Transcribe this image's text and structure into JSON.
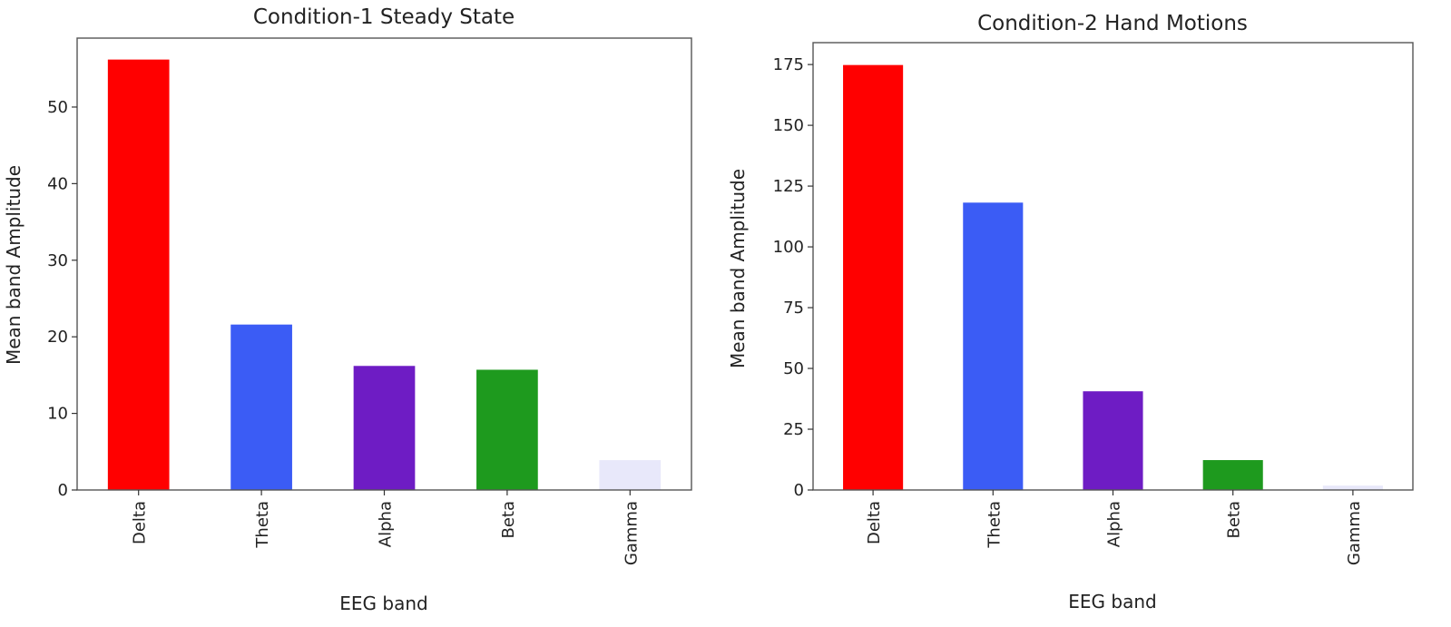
{
  "chart_data": [
    {
      "type": "bar",
      "title": "Condition-1 Steady State",
      "xlabel": "EEG band",
      "ylabel": "Mean band Amplitude",
      "categories": [
        "Delta",
        "Theta",
        "Alpha",
        "Beta",
        "Gamma"
      ],
      "values": [
        56.2,
        21.6,
        16.2,
        15.7,
        3.9
      ],
      "colors": [
        "#ff0000",
        "#3b5cf5",
        "#6e1cc4",
        "#1e9a1e",
        "#e8e8fa"
      ],
      "ylim": [
        0,
        59
      ],
      "yticks": [
        0,
        10,
        20,
        30,
        40,
        50
      ],
      "grid": false,
      "legend": "none"
    },
    {
      "type": "bar",
      "title": "Condition-2 Hand Motions",
      "xlabel": "EEG band",
      "ylabel": "Mean band Amplitude",
      "categories": [
        "Delta",
        "Theta",
        "Alpha",
        "Beta",
        "Gamma"
      ],
      "values": [
        174.8,
        118.2,
        40.6,
        12.3,
        1.8
      ],
      "colors": [
        "#ff0000",
        "#3b5cf5",
        "#6e1cc4",
        "#1e9a1e",
        "#e8e8fa"
      ],
      "ylim": [
        0,
        184
      ],
      "yticks": [
        0,
        25,
        50,
        75,
        100,
        125,
        150,
        175
      ],
      "grid": false,
      "legend": "none"
    }
  ]
}
